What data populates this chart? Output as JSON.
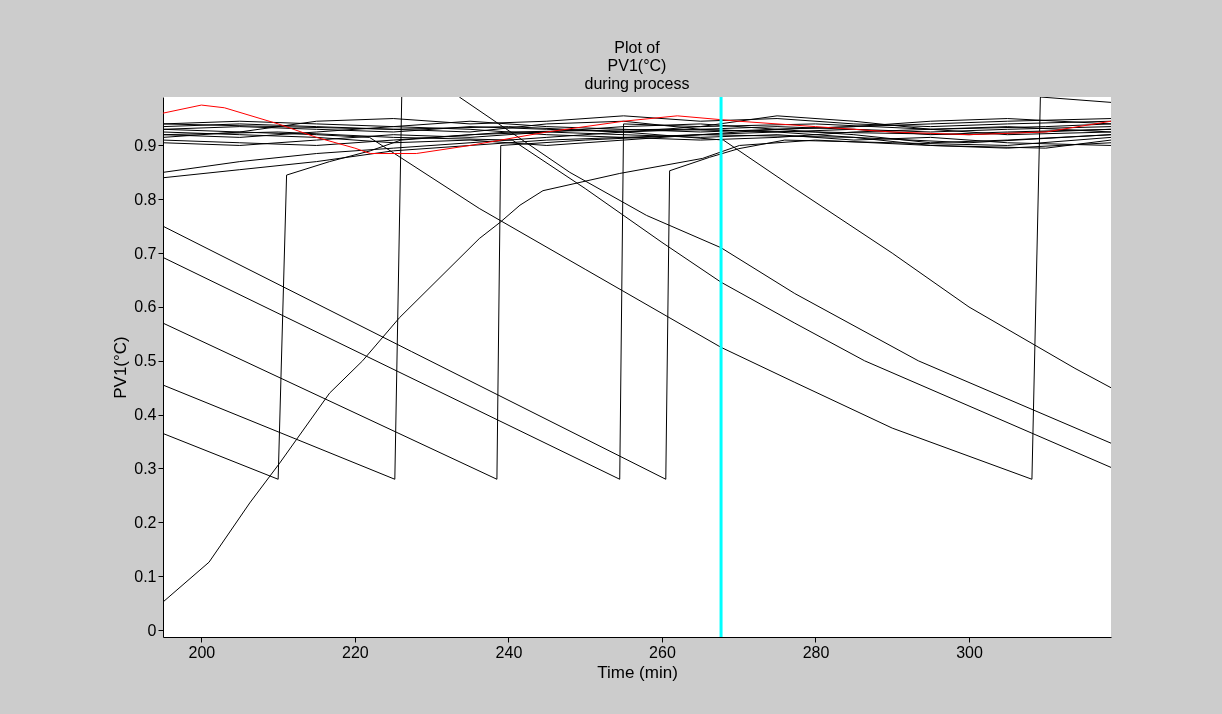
{
  "chart_data": {
    "type": "line",
    "title": "Plot of\nPV1(°C)\nduring process",
    "xlabel": "Time (min)",
    "ylabel": "PV1(°C)",
    "xlim": [
      195,
      318.5
    ],
    "ylim": [
      -0.013,
      0.99
    ],
    "xticks": [
      200,
      220,
      240,
      260,
      280,
      300
    ],
    "yticks": [
      0,
      0.1,
      0.2,
      0.3,
      0.4,
      0.5,
      0.6,
      0.7,
      0.8,
      0.9
    ],
    "grid": false,
    "legend": false,
    "marker": "none",
    "line_style": "solid",
    "ref_lines": [
      {
        "axis": "x",
        "value": 267.7,
        "color": "#00ffff"
      }
    ],
    "series": [
      {
        "color": "#000000",
        "x": [
          195,
          210.0,
          211.1,
          216.7,
          222,
          226,
          240,
          260,
          280,
          300,
          318.5
        ],
        "values": [
          0.365,
          0.28,
          0.845,
          0.87,
          0.89,
          0.91,
          0.925,
          0.93,
          0.925,
          0.92,
          0.93
        ]
      },
      {
        "color": "#000000",
        "x": [
          195,
          225.2,
          226.1
        ],
        "values": [
          0.455,
          0.28,
          0.99
        ]
      },
      {
        "color": "#000000",
        "x": [
          195,
          238.5,
          239.0,
          250,
          265,
          285,
          300,
          318.5
        ],
        "values": [
          0.57,
          0.28,
          0.9,
          0.91,
          0.92,
          0.915,
          0.905,
          0.92
        ]
      },
      {
        "color": "#000000",
        "x": [
          195,
          254.5,
          255.0,
          265,
          280,
          295,
          310,
          318.5
        ],
        "values": [
          0.692,
          0.28,
          0.94,
          0.935,
          0.94,
          0.93,
          0.935,
          0.94
        ]
      },
      {
        "color": "#000000",
        "x": [
          195,
          227.4,
          260.5,
          261.0,
          266.2,
          270,
          276,
          290,
          305,
          318.5
        ],
        "values": [
          0.75,
          0.517,
          0.28,
          0.853,
          0.878,
          0.894,
          0.91,
          0.905,
          0.9,
          0.915
        ]
      },
      {
        "color": "#000000",
        "x": [
          195,
          201,
          206.3,
          210.2,
          216.7,
          221,
          225.8,
          236.2,
          238.9,
          241.5,
          244.5,
          254.5,
          265.3,
          270.1,
          280,
          295,
          310,
          318.5
        ],
        "values": [
          0.052,
          0.126,
          0.236,
          0.31,
          0.44,
          0.5,
          0.58,
          0.727,
          0.757,
          0.789,
          0.816,
          0.848,
          0.876,
          0.9,
          0.91,
          0.9,
          0.895,
          0.91
        ]
      },
      {
        "color": "#000000",
        "x": [
          195,
          205,
          215,
          221.9,
          236.2,
          250,
          267.7,
          277.3,
          290,
          308.2,
          309.3,
          318.5
        ],
        "values": [
          0.93,
          0.925,
          0.92,
          0.915,
          0.783,
          0.67,
          0.525,
          0.46,
          0.375,
          0.28,
          0.99,
          0.98
        ]
      },
      {
        "color": "#000000",
        "x": [
          233.6,
          248,
          258,
          267.7,
          277.3,
          293.4,
          318.5
        ],
        "values": [
          0.99,
          0.85,
          0.77,
          0.71,
          0.625,
          0.5,
          0.347
        ]
      },
      {
        "color": "#000000",
        "x": [
          195,
          210,
          225,
          240.5,
          250,
          260,
          267.7,
          277.3,
          286.4,
          318.5
        ],
        "values": [
          0.92,
          0.925,
          0.915,
          0.91,
          0.82,
          0.72,
          0.646,
          0.57,
          0.5,
          0.302
        ]
      },
      {
        "color": "#000000",
        "x": [
          195,
          210,
          225,
          240,
          255,
          268,
          277.3,
          290,
          300,
          313.8,
          318.5
        ],
        "values": [
          0.94,
          0.935,
          0.93,
          0.935,
          0.925,
          0.91,
          0.82,
          0.7,
          0.6,
          0.486,
          0.45
        ]
      },
      {
        "color": "#000000",
        "x": [
          195,
          205,
          215,
          225,
          235,
          245,
          255,
          265,
          275,
          285,
          295,
          305,
          318.5
        ],
        "values": [
          0.84,
          0.855,
          0.87,
          0.89,
          0.9,
          0.91,
          0.915,
          0.92,
          0.925,
          0.93,
          0.925,
          0.93,
          0.935
        ]
      },
      {
        "color": "#000000",
        "x": [
          195,
          205,
          215,
          225,
          235,
          245,
          255,
          265,
          275,
          285,
          295,
          305,
          318.5
        ],
        "values": [
          0.85,
          0.87,
          0.885,
          0.895,
          0.905,
          0.915,
          0.925,
          0.93,
          0.935,
          0.93,
          0.92,
          0.925,
          0.93
        ]
      },
      {
        "color": "#000000",
        "x": [
          195,
          205,
          215,
          225,
          235,
          245,
          255,
          265,
          275,
          285,
          295,
          305,
          318.5
        ],
        "values": [
          0.905,
          0.9,
          0.91,
          0.92,
          0.915,
          0.925,
          0.935,
          0.94,
          0.93,
          0.935,
          0.94,
          0.945,
          0.95
        ]
      },
      {
        "color": "#000000",
        "x": [
          195,
          205,
          215,
          225,
          235,
          245,
          255,
          265,
          275,
          285,
          295,
          305,
          318.5
        ],
        "values": [
          0.915,
          0.925,
          0.945,
          0.95,
          0.94,
          0.945,
          0.955,
          0.945,
          0.95,
          0.94,
          0.935,
          0.94,
          0.945
        ]
      },
      {
        "color": "#000000",
        "x": [
          195,
          205,
          215,
          225,
          235,
          245,
          255,
          265,
          275,
          285,
          295,
          305,
          318.5
        ],
        "values": [
          0.93,
          0.935,
          0.93,
          0.925,
          0.935,
          0.93,
          0.925,
          0.935,
          0.955,
          0.945,
          0.93,
          0.92,
          0.925
        ]
      },
      {
        "color": "#000000",
        "x": [
          195,
          205,
          215,
          225,
          235,
          245,
          255,
          265,
          275,
          285,
          295,
          305,
          318.5
        ],
        "values": [
          0.935,
          0.94,
          0.935,
          0.93,
          0.925,
          0.94,
          0.945,
          0.93,
          0.925,
          0.915,
          0.9,
          0.895,
          0.905
        ]
      },
      {
        "color": "#000000",
        "x": [
          195,
          205,
          215,
          225,
          235,
          245,
          255,
          265,
          275,
          285,
          295,
          305,
          318.5
        ],
        "values": [
          0.925,
          0.92,
          0.915,
          0.905,
          0.91,
          0.9,
          0.91,
          0.92,
          0.93,
          0.92,
          0.905,
          0.91,
          0.92
        ]
      },
      {
        "color": "#000000",
        "x": [
          195,
          205,
          215,
          225,
          235,
          245,
          255,
          265,
          275,
          285,
          295,
          305,
          318.5
        ],
        "values": [
          0.94,
          0.945,
          0.94,
          0.935,
          0.945,
          0.935,
          0.93,
          0.925,
          0.93,
          0.935,
          0.945,
          0.95,
          0.94
        ]
      },
      {
        "color": "#000000",
        "x": [
          195,
          205,
          215,
          225,
          235,
          245,
          255,
          265,
          275,
          285,
          295,
          305,
          318.5
        ],
        "values": [
          0.92,
          0.915,
          0.925,
          0.935,
          0.93,
          0.92,
          0.915,
          0.91,
          0.915,
          0.925,
          0.93,
          0.935,
          0.925
        ]
      },
      {
        "color": "#000000",
        "x": [
          195,
          205,
          215,
          225,
          235,
          245,
          255,
          265,
          275,
          285,
          295,
          305,
          318.5
        ],
        "values": [
          0.91,
          0.905,
          0.9,
          0.91,
          0.92,
          0.925,
          0.92,
          0.915,
          0.92,
          0.91,
          0.915,
          0.905,
          0.9
        ]
      },
      {
        "color": "#ff0000",
        "x": [
          195,
          200,
          203,
          210,
          215,
          220,
          222,
          228,
          235,
          245,
          255,
          262,
          270,
          280,
          290,
          300,
          310,
          318.5
        ],
        "values": [
          0.96,
          0.975,
          0.97,
          0.94,
          0.915,
          0.895,
          0.885,
          0.885,
          0.9,
          0.925,
          0.945,
          0.955,
          0.945,
          0.935,
          0.925,
          0.92,
          0.925,
          0.945
        ]
      }
    ]
  }
}
